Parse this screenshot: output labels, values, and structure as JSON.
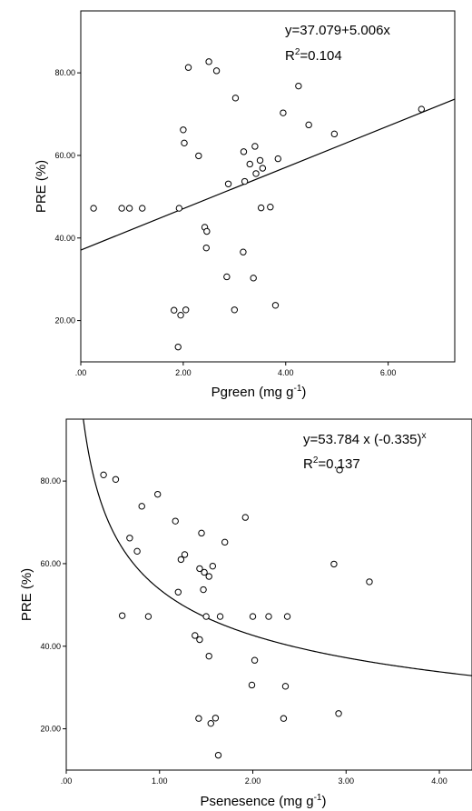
{
  "chart_data": [
    {
      "type": "scatter",
      "xlabel": "Pgreen (mg g",
      "xlabel_sup": "-1",
      "xlabel_end": ")",
      "ylabel": "PRE (%)",
      "xlim": [
        0,
        7.3
      ],
      "ylim": [
        10,
        95
      ],
      "xticks": [
        ".00",
        "2.00",
        "4.00",
        "6.00"
      ],
      "xtick_values": [
        0,
        2,
        4,
        6
      ],
      "yticks": [
        "20.00",
        "40.00",
        "60.00",
        "80.00"
      ],
      "ytick_values": [
        20,
        40,
        60,
        80
      ],
      "equation": "y=37.079+5.006x",
      "r2_prefix": "R",
      "r2_sup": "2",
      "r2_value": "=0.104",
      "fit": {
        "kind": "linear",
        "intercept": 37.079,
        "slope": 5.006
      },
      "points": [
        [
          0.25,
          47.2
        ],
        [
          0.8,
          47.2
        ],
        [
          0.95,
          47.2
        ],
        [
          1.2,
          47.2
        ],
        [
          1.82,
          22.5
        ],
        [
          1.9,
          13.6
        ],
        [
          1.92,
          47.2
        ],
        [
          1.95,
          21.3
        ],
        [
          2.0,
          66.2
        ],
        [
          2.02,
          63.0
        ],
        [
          2.05,
          22.6
        ],
        [
          2.1,
          81.3
        ],
        [
          2.3,
          59.9
        ],
        [
          2.42,
          42.6
        ],
        [
          2.45,
          37.6
        ],
        [
          2.46,
          41.6
        ],
        [
          2.5,
          82.7
        ],
        [
          2.65,
          80.5
        ],
        [
          2.85,
          30.6
        ],
        [
          2.88,
          53.1
        ],
        [
          3.0,
          22.6
        ],
        [
          3.02,
          73.9
        ],
        [
          3.17,
          36.6
        ],
        [
          3.18,
          60.9
        ],
        [
          3.2,
          53.7
        ],
        [
          3.3,
          57.9
        ],
        [
          3.37,
          30.3
        ],
        [
          3.4,
          62.2
        ],
        [
          3.42,
          55.6
        ],
        [
          3.5,
          58.8
        ],
        [
          3.52,
          47.3
        ],
        [
          3.55,
          56.9
        ],
        [
          3.7,
          47.5
        ],
        [
          3.8,
          23.7
        ],
        [
          3.85,
          59.2
        ],
        [
          3.95,
          70.3
        ],
        [
          4.25,
          76.8
        ],
        [
          4.45,
          67.4
        ],
        [
          4.95,
          65.2
        ],
        [
          6.65,
          71.2
        ]
      ]
    },
    {
      "type": "scatter",
      "xlabel": "Psenesence (mg g",
      "xlabel_sup": "-1",
      "xlabel_end": ")",
      "ylabel": "PRE (%)",
      "xlim": [
        0,
        4.35
      ],
      "ylim": [
        10,
        95
      ],
      "xticks": [
        ".00",
        "1.00",
        "2.00",
        "3.00",
        "4.00"
      ],
      "xtick_values": [
        0,
        1,
        2,
        3,
        4
      ],
      "yticks": [
        "20.00",
        "40.00",
        "60.00",
        "80.00"
      ],
      "ytick_values": [
        20,
        40,
        60,
        80
      ],
      "equation": "y=53.784 x (-0.335)",
      "equation_sup": "x",
      "r2_prefix": "R",
      "r2_sup": "2",
      "r2_value": "=0.137",
      "fit": {
        "kind": "power",
        "a": 53.784,
        "b": -0.335
      },
      "points": [
        [
          0.4,
          81.5
        ],
        [
          0.53,
          80.4
        ],
        [
          0.6,
          47.4
        ],
        [
          0.68,
          66.2
        ],
        [
          0.76,
          63.0
        ],
        [
          0.81,
          73.9
        ],
        [
          0.88,
          47.2
        ],
        [
          0.98,
          76.8
        ],
        [
          1.17,
          70.3
        ],
        [
          1.2,
          53.1
        ],
        [
          1.23,
          61.0
        ],
        [
          1.27,
          62.2
        ],
        [
          1.38,
          42.6
        ],
        [
          1.42,
          22.5
        ],
        [
          1.43,
          41.6
        ],
        [
          1.43,
          58.8
        ],
        [
          1.45,
          67.4
        ],
        [
          1.47,
          53.7
        ],
        [
          1.48,
          57.9
        ],
        [
          1.5,
          47.2
        ],
        [
          1.53,
          37.6
        ],
        [
          1.53,
          56.9
        ],
        [
          1.55,
          21.3
        ],
        [
          1.57,
          59.4
        ],
        [
          1.6,
          22.6
        ],
        [
          1.63,
          13.6
        ],
        [
          1.65,
          47.2
        ],
        [
          1.7,
          65.2
        ],
        [
          1.92,
          71.2
        ],
        [
          1.99,
          30.6
        ],
        [
          2.0,
          47.2
        ],
        [
          2.02,
          36.6
        ],
        [
          2.17,
          47.2
        ],
        [
          2.33,
          22.5
        ],
        [
          2.35,
          30.3
        ],
        [
          2.37,
          47.2
        ],
        [
          2.87,
          59.9
        ],
        [
          2.92,
          23.7
        ],
        [
          2.93,
          82.7
        ],
        [
          3.25,
          55.6
        ]
      ]
    }
  ]
}
